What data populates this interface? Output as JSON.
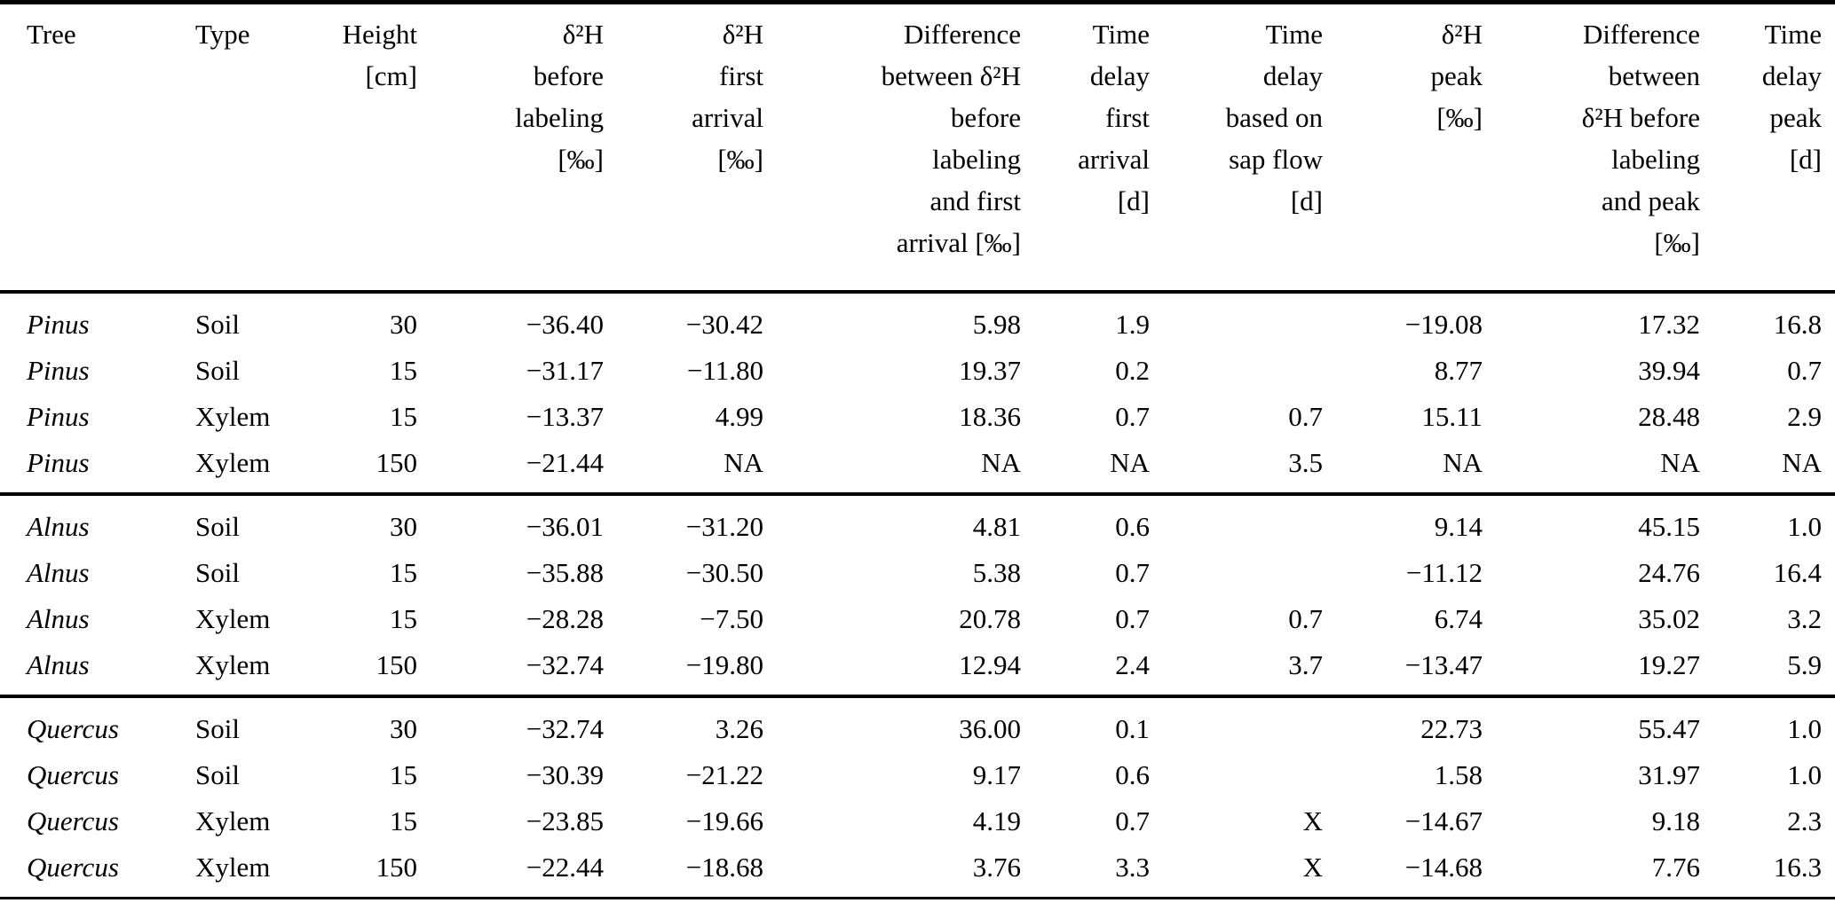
{
  "table": {
    "columns": [
      {
        "label": "Tree",
        "align": "left"
      },
      {
        "label": "Type",
        "align": "left"
      },
      {
        "label": "Height\n[cm]",
        "align": "right"
      },
      {
        "label": "δ²H\nbefore\nlabeling\n[‰]",
        "align": "right"
      },
      {
        "label": "δ²H\nfirst\narrival\n[‰]",
        "align": "right"
      },
      {
        "label": "Difference\nbetween δ²H\nbefore\nlabeling\nand first\narrival [‰]",
        "align": "right"
      },
      {
        "label": "Time\ndelay\nfirst\narrival\n[d]",
        "align": "right"
      },
      {
        "label": "Time\ndelay\nbased on\nsap flow\n[d]",
        "align": "right"
      },
      {
        "label": "δ²H\npeak\n[‰]",
        "align": "right"
      },
      {
        "label": "Difference\nbetween\nδ²H before\nlabeling\nand peak\n[‰]",
        "align": "right"
      },
      {
        "label": "Time\ndelay\npeak\n[d]",
        "align": "right"
      }
    ],
    "groups": [
      {
        "species": "Pinus",
        "rows": [
          [
            "Pinus",
            "Soil",
            "30",
            "−36.40",
            "−30.42",
            "5.98",
            "1.9",
            "",
            "−19.08",
            "17.32",
            "16.8"
          ],
          [
            "Pinus",
            "Soil",
            "15",
            "−31.17",
            "−11.80",
            "19.37",
            "0.2",
            "",
            "8.77",
            "39.94",
            "0.7"
          ],
          [
            "Pinus",
            "Xylem",
            "15",
            "−13.37",
            "4.99",
            "18.36",
            "0.7",
            "0.7",
            "15.11",
            "28.48",
            "2.9"
          ],
          [
            "Pinus",
            "Xylem",
            "150",
            "−21.44",
            "NA",
            "NA",
            "NA",
            "3.5",
            "NA",
            "NA",
            "NA"
          ]
        ]
      },
      {
        "species": "Alnus",
        "rows": [
          [
            "Alnus",
            "Soil",
            "30",
            "−36.01",
            "−31.20",
            "4.81",
            "0.6",
            "",
            "9.14",
            "45.15",
            "1.0"
          ],
          [
            "Alnus",
            "Soil",
            "15",
            "−35.88",
            "−30.50",
            "5.38",
            "0.7",
            "",
            "−11.12",
            "24.76",
            "16.4"
          ],
          [
            "Alnus",
            "Xylem",
            "15",
            "−28.28",
            "−7.50",
            "20.78",
            "0.7",
            "0.7",
            "6.74",
            "35.02",
            "3.2"
          ],
          [
            "Alnus",
            "Xylem",
            "150",
            "−32.74",
            "−19.80",
            "12.94",
            "2.4",
            "3.7",
            "−13.47",
            "19.27",
            "5.9"
          ]
        ]
      },
      {
        "species": "Quercus",
        "rows": [
          [
            "Quercus",
            "Soil",
            "30",
            "−32.74",
            "3.26",
            "36.00",
            "0.1",
            "",
            "22.73",
            "55.47",
            "1.0"
          ],
          [
            "Quercus",
            "Soil",
            "15",
            "−30.39",
            "−21.22",
            "9.17",
            "0.6",
            "",
            "1.58",
            "31.97",
            "1.0"
          ],
          [
            "Quercus",
            "Xylem",
            "15",
            "−23.85",
            "−19.66",
            "4.19",
            "0.7",
            "X",
            "−14.67",
            "9.18",
            "2.3"
          ],
          [
            "Quercus",
            "Xylem",
            "150",
            "−22.44",
            "−18.68",
            "3.76",
            "3.3",
            "X",
            "−14.68",
            "7.76",
            "16.3"
          ]
        ]
      }
    ]
  }
}
